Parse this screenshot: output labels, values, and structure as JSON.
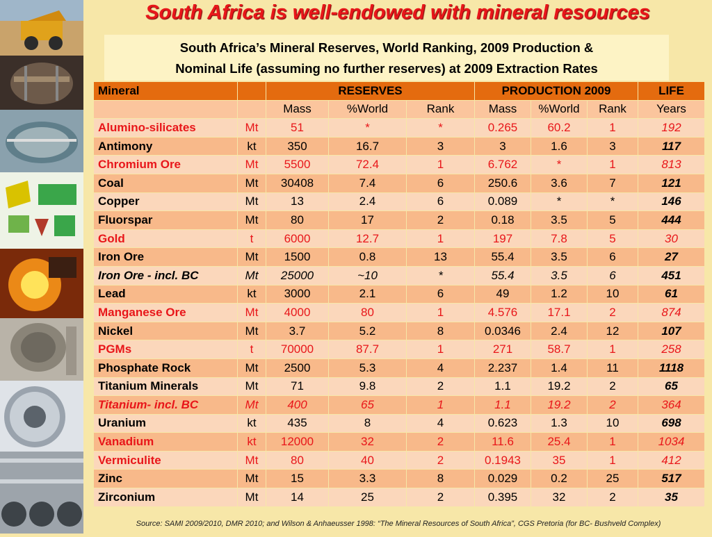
{
  "title": "South Africa is well-endowed with mineral resources",
  "subtitle": {
    "line1": "South Africa’s Mineral Reserves, World Ranking, 2009 Production &",
    "line2": "Nominal Life (assuming no further reserves) at 2009 Extraction Rates"
  },
  "table": {
    "header1": [
      "Mineral",
      "RESERVES",
      "PRODUCTION 2009",
      "LIFE"
    ],
    "header2": [
      "Mass",
      "%World",
      "Rank",
      "Mass",
      "%World",
      "Rank",
      "Years"
    ],
    "rows": [
      {
        "cells": [
          "Alumino-silicates",
          "Mt",
          "51",
          "*",
          "*",
          "0.265",
          "60.2",
          "1",
          "192"
        ],
        "red": true,
        "italic": false
      },
      {
        "cells": [
          "Antimony",
          "kt",
          "350",
          "16.7",
          "3",
          "3",
          "1.6",
          "3",
          "117"
        ],
        "red": false,
        "italic": false
      },
      {
        "cells": [
          "Chromium Ore",
          "Mt",
          "5500",
          "72.4",
          "1",
          "6.762",
          "*",
          "1",
          "813"
        ],
        "red": true,
        "italic": false
      },
      {
        "cells": [
          "Coal",
          "Mt",
          "30408",
          "7.4",
          "6",
          "250.6",
          "3.6",
          "7",
          "121"
        ],
        "red": false,
        "italic": false
      },
      {
        "cells": [
          "Copper",
          "Mt",
          "13",
          "2.4",
          "6",
          "0.089",
          "*",
          "*",
          "146"
        ],
        "red": false,
        "italic": false
      },
      {
        "cells": [
          "Fluorspar",
          "Mt",
          "80",
          "17",
          "2",
          "0.18",
          "3.5",
          "5",
          "444"
        ],
        "red": false,
        "italic": false
      },
      {
        "cells": [
          "Gold",
          "t",
          "6000",
          "12.7",
          "1",
          "197",
          "7.8",
          "5",
          "30"
        ],
        "red": true,
        "italic": false
      },
      {
        "cells": [
          "Iron Ore",
          "Mt",
          "1500",
          "0.8",
          "13",
          "55.4",
          "3.5",
          "6",
          "27"
        ],
        "red": false,
        "italic": false
      },
      {
        "cells": [
          "Iron Ore  - incl. BC",
          "Mt",
          "25000",
          "~10",
          "*",
          "55.4",
          "3.5",
          "6",
          "451"
        ],
        "red": false,
        "italic": true
      },
      {
        "cells": [
          "Lead",
          "kt",
          "3000",
          "2.1",
          "6",
          "49",
          "1.2",
          "10",
          "61"
        ],
        "red": false,
        "italic": false
      },
      {
        "cells": [
          "Manganese Ore",
          "Mt",
          "4000",
          "80",
          "1",
          "4.576",
          "17.1",
          "2",
          "874"
        ],
        "red": true,
        "italic": false
      },
      {
        "cells": [
          "Nickel",
          "Mt",
          "3.7",
          "5.2",
          "8",
          "0.0346",
          "2.4",
          "12",
          "107"
        ],
        "red": false,
        "italic": false
      },
      {
        "cells": [
          "PGMs",
          "t",
          "70000",
          "87.7",
          "1",
          "271",
          "58.7",
          "1",
          "258"
        ],
        "red": true,
        "italic": false
      },
      {
        "cells": [
          "Phosphate Rock",
          "Mt",
          "2500",
          "5.3",
          "4",
          "2.237",
          "1.4",
          "11",
          "1118"
        ],
        "red": false,
        "italic": false
      },
      {
        "cells": [
          "Titanium Minerals",
          "Mt",
          "71",
          "9.8",
          "2",
          "1.1",
          "19.2",
          "2",
          "65"
        ],
        "red": false,
        "italic": false
      },
      {
        "cells": [
          "Titanium- incl. BC",
          "Mt",
          "400",
          "65",
          "1",
          "1.1",
          "19.2",
          "2",
          "364"
        ],
        "red": true,
        "italic": true
      },
      {
        "cells": [
          "Uranium",
          "kt",
          "435",
          "8",
          "4",
          "0.623",
          "1.3",
          "10",
          "698"
        ],
        "red": false,
        "italic": false
      },
      {
        "cells": [
          "Vanadium",
          "kt",
          "12000",
          "32",
          "2",
          "11.6",
          "25.4",
          "1",
          "1034"
        ],
        "red": true,
        "italic": false
      },
      {
        "cells": [
          "Vermiculite",
          "Mt",
          "80",
          "40",
          "2",
          "0.1943",
          "35",
          "1",
          "412"
        ],
        "red": true,
        "italic": false
      },
      {
        "cells": [
          "Zinc",
          "Mt",
          "15",
          "3.3",
          "8",
          "0.029",
          "0.2",
          "25",
          "517"
        ],
        "red": false,
        "italic": false
      },
      {
        "cells": [
          "Zirconium",
          "Mt",
          "14",
          "25",
          "2",
          "0.395",
          "32",
          "2",
          "35"
        ],
        "red": false,
        "italic": false
      }
    ]
  },
  "source": "Source: SAMI 2009/2010, DMR 2010; and Wilson & Anhaeusser 1998: “The Mineral Resources of South Africa”, CGS Pretoria (for BC- Bushveld Complex)",
  "colors": {
    "title_red": "#e8161a",
    "header_orange": "#e46b0f",
    "row_light": "#fbd7bb",
    "row_dark": "#f8b98a",
    "background": "#f7e7a8"
  },
  "sidebar_photos": [
    "mining-truck-photo",
    "underground-mine-photo",
    "thickener-tank-photo",
    "processing-equipment-illustration",
    "molten-metal-pour-photo",
    "mill-plant-photo",
    "steel-coil-photo",
    "steel-pipes-photo"
  ]
}
